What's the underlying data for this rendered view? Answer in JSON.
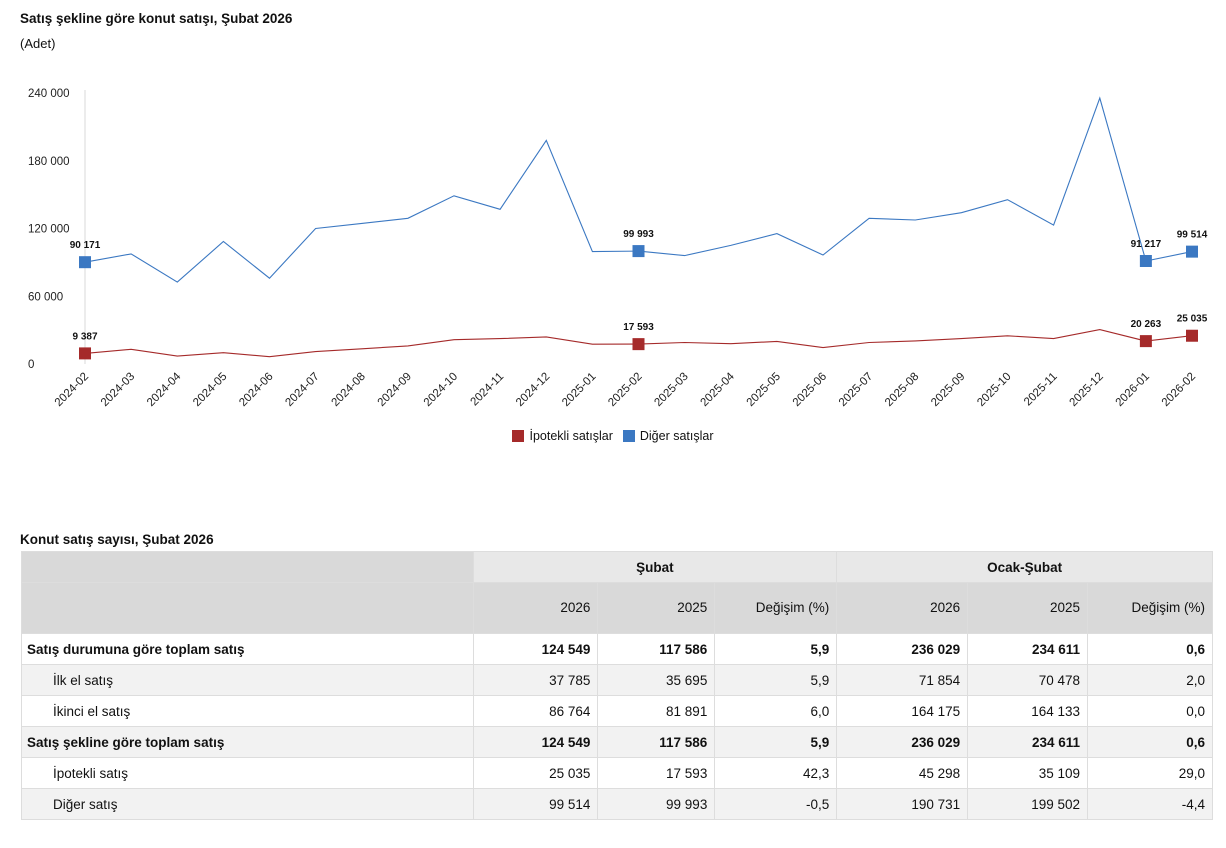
{
  "chart_data": {
    "type": "line",
    "title": "Satış şekline göre konut satışı, Şubat 2026",
    "subtitle": "(Adet)",
    "x": [
      "2024-02",
      "2024-03",
      "2024-04",
      "2024-05",
      "2024-06",
      "2024-07",
      "2024-08",
      "2024-09",
      "2024-10",
      "2024-11",
      "2024-12",
      "2025-01",
      "2025-02",
      "2025-03",
      "2025-04",
      "2025-05",
      "2025-06",
      "2025-07",
      "2025-08",
      "2025-09",
      "2025-10",
      "2025-11",
      "2025-12",
      "2026-01",
      "2026-02"
    ],
    "ylim": [
      0,
      240000
    ],
    "yticks": [
      0,
      60000,
      120000,
      180000,
      240000
    ],
    "ytick_labels": [
      "0",
      "60 000",
      "120 000",
      "180 000",
      "240 000"
    ],
    "grid": false,
    "legend_position": "bottom",
    "series": [
      {
        "name": "İpotekli satışlar",
        "color": "#a52a2a",
        "values": [
          9387,
          13000,
          7000,
          10000,
          6500,
          11000,
          13500,
          16000,
          21500,
          22500,
          24000,
          17500,
          17593,
          19000,
          18000,
          20000,
          14500,
          19000,
          20500,
          22500,
          25000,
          22500,
          30500,
          20263,
          25035
        ],
        "data_labels": [
          {
            "index": 0,
            "text": "9 387"
          },
          {
            "index": 12,
            "text": "17 593"
          },
          {
            "index": 23,
            "text": "20 263"
          },
          {
            "index": 24,
            "text": "25 035"
          }
        ]
      },
      {
        "name": "Diğer satışlar",
        "color": "#3b78c2",
        "values": [
          90171,
          97500,
          72500,
          108500,
          76000,
          120000,
          124500,
          129000,
          149000,
          137000,
          198000,
          99500,
          99993,
          96000,
          105000,
          115500,
          96500,
          129000,
          127500,
          134000,
          145500,
          123000,
          235500,
          91217,
          99514
        ],
        "data_labels": [
          {
            "index": 0,
            "text": "90 171"
          },
          {
            "index": 12,
            "text": "99 993"
          },
          {
            "index": 23,
            "text": "91 217"
          },
          {
            "index": 24,
            "text": "99 514"
          }
        ]
      }
    ]
  },
  "table": {
    "title": "Konut satış sayısı, Şubat 2026",
    "group_headers": [
      "Şubat",
      "Ocak-Şubat"
    ],
    "sub_headers": [
      "2026",
      "2025",
      "Değişim (%)",
      "2026",
      "2025",
      "Değişim (%)"
    ],
    "rows": [
      {
        "label": "Satış durumuna göre toplam satış",
        "values": [
          "124 549",
          "117 586",
          "5,9",
          "236 029",
          "234 611",
          "0,6"
        ]
      },
      {
        "label": "İlk el satış",
        "values": [
          "37 785",
          "35 695",
          "5,9",
          "71 854",
          "70 478",
          "2,0"
        ]
      },
      {
        "label": "İkinci el satış",
        "values": [
          "86 764",
          "81 891",
          "6,0",
          "164 175",
          "164 133",
          "0,0"
        ]
      },
      {
        "label": "Satış şekline göre toplam satış",
        "values": [
          "124 549",
          "117 586",
          "5,9",
          "236 029",
          "234 611",
          "0,6"
        ]
      },
      {
        "label": "İpotekli satış",
        "values": [
          "25 035",
          "17 593",
          "42,3",
          "45 298",
          "35 109",
          "29,0"
        ]
      },
      {
        "label": "Diğer satış",
        "values": [
          "99 514",
          "99 993",
          "-0,5",
          "190 731",
          "199 502",
          "-4,4"
        ]
      }
    ]
  }
}
